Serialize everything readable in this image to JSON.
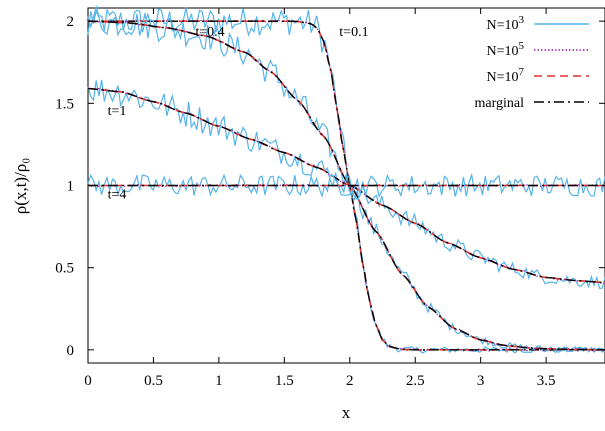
{
  "chart_data": {
    "type": "line",
    "xlabel": "x",
    "ylabel": "ρ(x,t)/ρ₀",
    "xlim": [
      0,
      3.95
    ],
    "ylim": [
      -0.08,
      2.08
    ],
    "x_ticks": [
      "0",
      "0.5",
      "1",
      "1.5",
      "2",
      "2.5",
      "3",
      "3.5"
    ],
    "y_ticks": [
      "0",
      "0.5",
      "1",
      "1.5",
      "2"
    ],
    "legend_position": "top-right",
    "legend": [
      {
        "base": "N=10",
        "exp": "3"
      },
      {
        "base": "N=10",
        "exp": "5"
      },
      {
        "base": "N=10",
        "exp": "7"
      },
      {
        "base": "marginal",
        "exp": ""
      }
    ],
    "annotations": [
      {
        "text": "t=0.4",
        "x": 0.82,
        "y": 1.91
      },
      {
        "text": "t=0.1",
        "x": 1.92,
        "y": 1.91
      },
      {
        "text": "t=1",
        "x": 0.15,
        "y": 1.43
      },
      {
        "text": "t=4",
        "x": 0.15,
        "y": 0.92
      }
    ],
    "series_styles": {
      "N=10^3": {
        "color": "#56b4e9",
        "style": "solid"
      },
      "N=10^5": {
        "color": "#9a1fb0",
        "style": "dotted"
      },
      "N=10^7": {
        "color": "#e0332b",
        "style": "dashed"
      },
      "marginal": {
        "color": "#000000",
        "style": "dash-dot"
      }
    },
    "curves": [
      {
        "t": "0.1",
        "points": [
          [
            0,
            2.0
          ],
          [
            0.5,
            2.0
          ],
          [
            1.0,
            2.0
          ],
          [
            1.5,
            2.0
          ],
          [
            1.6,
            1.998
          ],
          [
            1.7,
            1.985
          ],
          [
            1.75,
            1.96
          ],
          [
            1.8,
            1.88
          ],
          [
            1.85,
            1.72
          ],
          [
            1.9,
            1.48
          ],
          [
            1.95,
            1.22
          ],
          [
            2.0,
            1.0
          ],
          [
            2.05,
            0.78
          ],
          [
            2.1,
            0.52
          ],
          [
            2.15,
            0.3
          ],
          [
            2.2,
            0.15
          ],
          [
            2.25,
            0.06
          ],
          [
            2.3,
            0.02
          ],
          [
            2.4,
            0.003
          ],
          [
            2.5,
            0.0
          ],
          [
            3.0,
            0.0
          ],
          [
            3.95,
            0.0
          ]
        ]
      },
      {
        "t": "0.4",
        "points": [
          [
            0,
            2.0
          ],
          [
            0.3,
            1.99
          ],
          [
            0.6,
            1.96
          ],
          [
            0.9,
            1.91
          ],
          [
            1.2,
            1.81
          ],
          [
            1.4,
            1.69
          ],
          [
            1.6,
            1.52
          ],
          [
            1.8,
            1.3
          ],
          [
            2.0,
            1.0
          ],
          [
            2.2,
            0.72
          ],
          [
            2.4,
            0.46
          ],
          [
            2.6,
            0.26
          ],
          [
            2.8,
            0.13
          ],
          [
            3.0,
            0.06
          ],
          [
            3.2,
            0.025
          ],
          [
            3.4,
            0.01
          ],
          [
            3.6,
            0.004
          ],
          [
            3.95,
            0.0
          ]
        ]
      },
      {
        "t": "1",
        "points": [
          [
            0,
            1.59
          ],
          [
            0.25,
            1.57
          ],
          [
            0.5,
            1.51
          ],
          [
            0.75,
            1.44
          ],
          [
            1.0,
            1.36
          ],
          [
            1.25,
            1.28
          ],
          [
            1.5,
            1.2
          ],
          [
            1.75,
            1.11
          ],
          [
            2.0,
            1.0
          ],
          [
            2.25,
            0.88
          ],
          [
            2.5,
            0.77
          ],
          [
            2.75,
            0.65
          ],
          [
            3.0,
            0.56
          ],
          [
            3.25,
            0.49
          ],
          [
            3.5,
            0.44
          ],
          [
            3.75,
            0.42
          ],
          [
            3.95,
            0.41
          ]
        ]
      },
      {
        "t": "4",
        "points": [
          [
            0,
            1.0
          ],
          [
            0.5,
            1.0
          ],
          [
            1.0,
            1.0
          ],
          [
            1.5,
            1.0
          ],
          [
            2.0,
            1.0
          ],
          [
            2.5,
            1.0
          ],
          [
            3.0,
            1.0
          ],
          [
            3.5,
            1.0
          ],
          [
            3.95,
            1.0
          ]
        ]
      }
    ]
  }
}
